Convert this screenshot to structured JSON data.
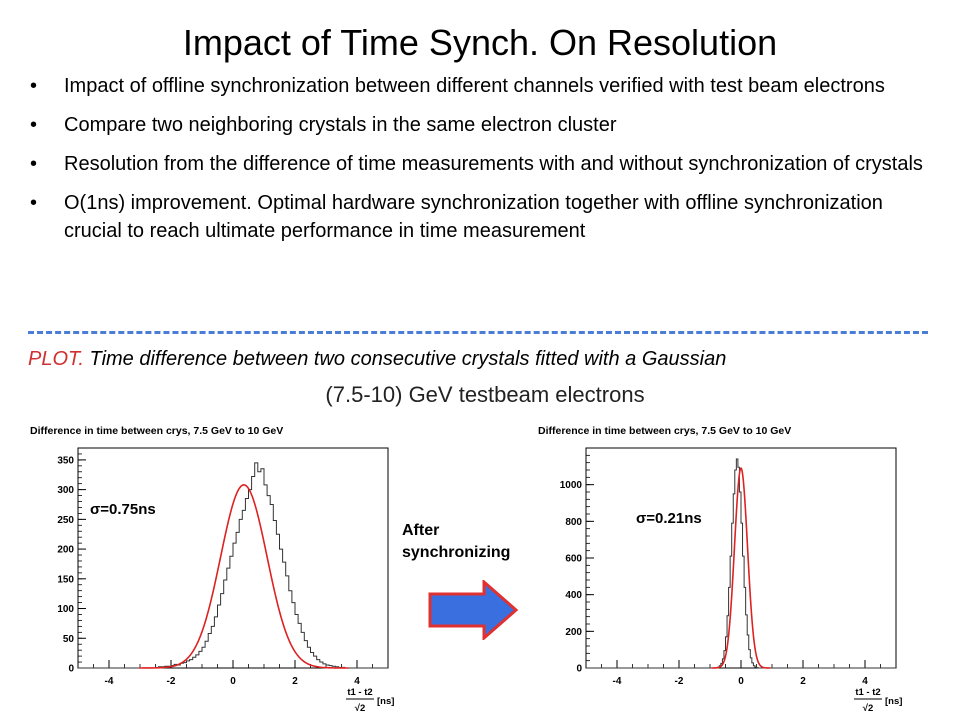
{
  "slide": {
    "title": "Impact of Time Synch. On Resolution",
    "bullet_glyph": "•",
    "bullets": [
      "Impact of offline synchronization between different channels verified with test beam electrons",
      "Compare two neighboring crystals in the same electron cluster",
      "Resolution from the difference of time measurements with and without synchronization of crystals",
      "O(1ns) improvement. Optimal hardware synchronization together with offline synchronization crucial to reach ultimate performance in time measurement"
    ],
    "caption_lead": "PLOT.",
    "caption_rest": " Time difference between two consecutive crystals fitted with a Gaussian",
    "subtitle": "(7.5-10) GeV testbeam electrons",
    "after_label_1": "After",
    "after_label_2": "synchronizing",
    "arrow_icon": "right-arrow-icon",
    "colors": {
      "caption_lead": "#d03030",
      "fit_curve": "#dd2222",
      "divider": "#4a7dd8",
      "arrow_fill": "#3a6fe0",
      "arrow_stroke": "#e03030"
    }
  },
  "chart_data": [
    {
      "type": "line",
      "title": "Difference in time between crys, 7.5 GeV to 10 GeV",
      "annotation": "σ=0.75ns",
      "xlabel_num": "t1 - t2",
      "xlabel_den": "√2",
      "xlabel_unit": "[ns]",
      "xlim": [
        -5,
        5
      ],
      "ylim": [
        0,
        370
      ],
      "xticks": [
        -4,
        -2,
        0,
        2,
        4
      ],
      "yticks": [
        0,
        50,
        100,
        150,
        200,
        250,
        300,
        350
      ],
      "fit": {
        "mean": 0.35,
        "sigma": 0.75,
        "amplitude": 308
      },
      "histogram": {
        "bin_start": -2.5,
        "bin_width": 0.1,
        "counts": [
          1,
          2,
          2,
          3,
          3,
          4,
          6,
          5,
          8,
          9,
          12,
          14,
          18,
          22,
          28,
          35,
          45,
          58,
          70,
          86,
          106,
          125,
          148,
          168,
          188,
          210,
          228,
          250,
          265,
          285,
          300,
          322,
          345,
          330,
          335,
          308,
          290,
          275,
          248,
          225,
          200,
          178,
          155,
          130,
          110,
          90,
          75,
          60,
          46,
          35,
          26,
          20,
          14,
          10,
          7,
          5,
          4,
          3,
          2,
          1,
          1
        ]
      }
    },
    {
      "type": "line",
      "title": "Difference in time between crys, 7.5 GeV to 10 GeV",
      "annotation": "σ=0.21ns",
      "xlabel_num": "t1 - t2",
      "xlabel_den": "√2",
      "xlabel_unit": "[ns]",
      "xlim": [
        -5,
        5
      ],
      "ylim": [
        0,
        1200
      ],
      "xticks": [
        -4,
        -2,
        0,
        2,
        4
      ],
      "yticks": [
        0,
        200,
        400,
        600,
        800,
        1000
      ],
      "fit": {
        "mean": 0.0,
        "sigma": 0.21,
        "amplitude": 1090
      },
      "histogram": {
        "bin_start": -0.8,
        "bin_width": 0.05,
        "counts": [
          2,
          5,
          12,
          25,
          50,
          95,
          170,
          285,
          440,
          610,
          790,
          950,
          1080,
          1140,
          1095,
          960,
          790,
          610,
          440,
          290,
          180,
          100,
          55,
          28,
          12,
          5,
          2
        ]
      }
    }
  ]
}
